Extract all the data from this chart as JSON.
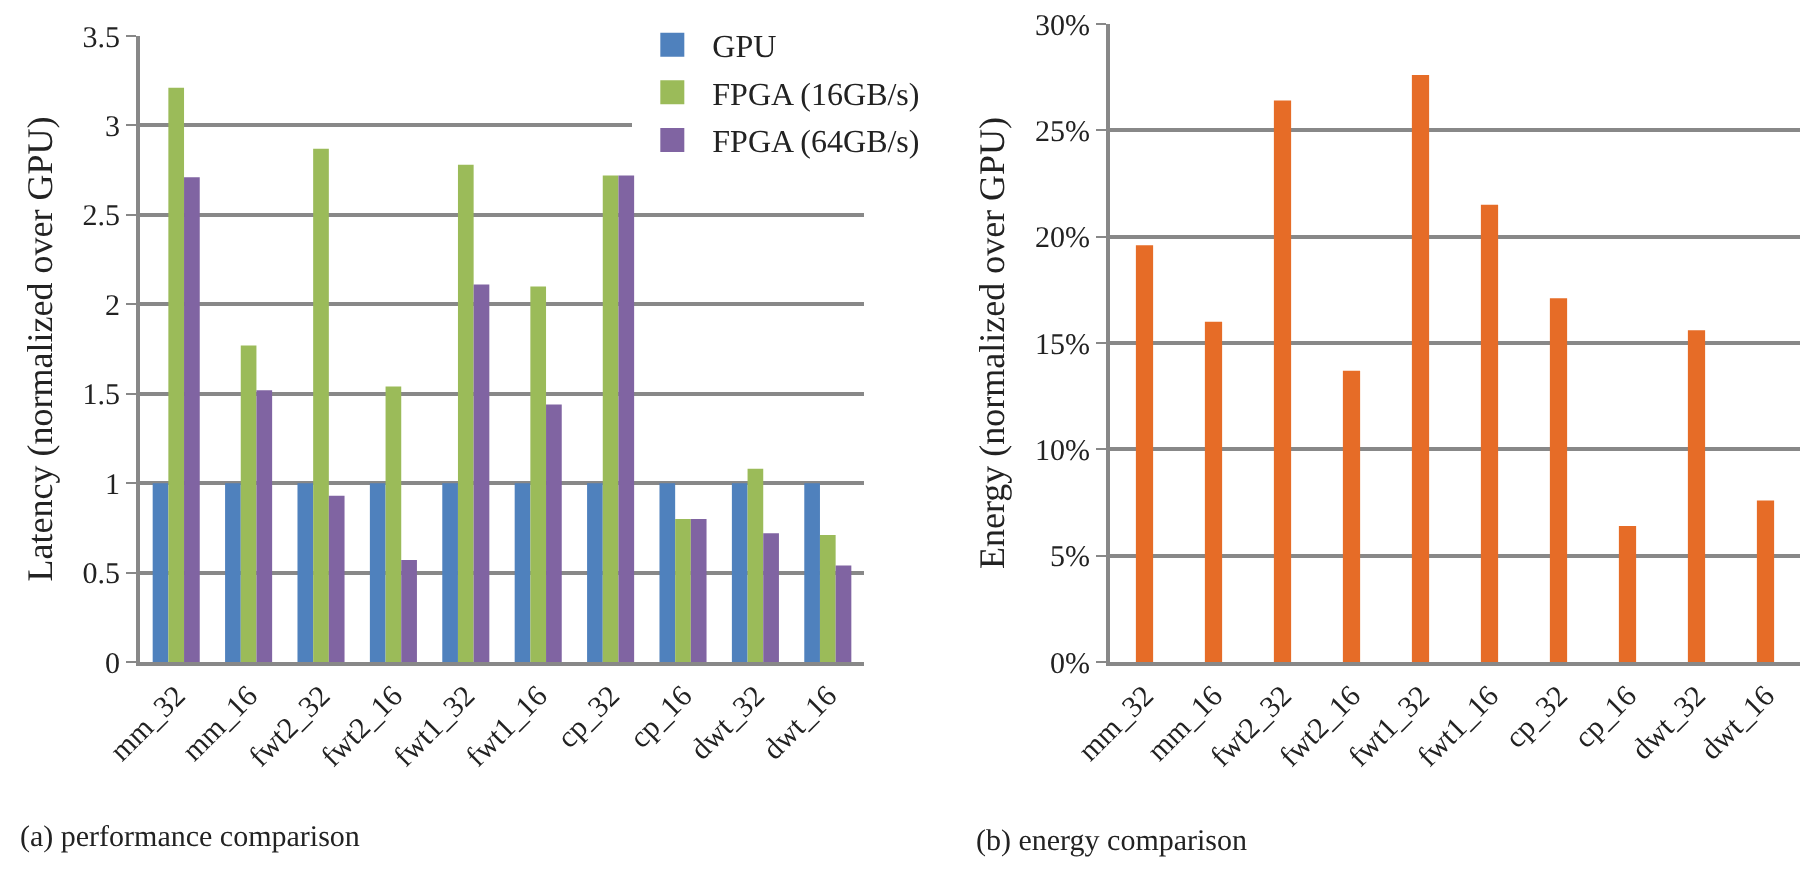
{
  "chart_data": [
    {
      "type": "bar",
      "ylabel": "Latency (normalized over GPU)",
      "categories": [
        "mm_32",
        "mm_16",
        "fwt2_32",
        "fwt2_16",
        "fwt1_32",
        "fwt1_16",
        "cp_32",
        "cp_16",
        "dwt_32",
        "dwt_16"
      ],
      "series": [
        {
          "name": "GPU",
          "color": "#4f81bd",
          "values": [
            1,
            1,
            1,
            1,
            1,
            1,
            1,
            1,
            1,
            1
          ]
        },
        {
          "name": "FPGA (16GB/s)",
          "color": "#9bbb59",
          "values": [
            3.21,
            1.77,
            2.87,
            1.54,
            2.78,
            2.1,
            2.72,
            0.8,
            1.08,
            0.71
          ]
        },
        {
          "name": "FPGA (64GB/s)",
          "color": "#8064a2",
          "values": [
            2.71,
            1.52,
            0.93,
            0.57,
            2.11,
            1.44,
            2.72,
            0.8,
            0.72,
            0.54
          ]
        }
      ],
      "ylim": [
        0,
        3.5
      ],
      "yticks": [
        0,
        0.5,
        1,
        1.5,
        2,
        2.5,
        3,
        3.5
      ],
      "grid": "y",
      "legend": "top right",
      "annotations": [
        "(a) performance comparison"
      ]
    },
    {
      "type": "bar",
      "ylabel": "Energy (normalized over GPU)",
      "categories": [
        "mm_32",
        "mm_16",
        "fwt2_32",
        "fwt2_16",
        "fwt1_32",
        "fwt1_16",
        "cp_32",
        "cp_16",
        "dwt_32",
        "dwt_16"
      ],
      "series": [
        {
          "color": "#e66c27",
          "values": [
            19.6,
            16.0,
            26.4,
            13.7,
            27.6,
            21.5,
            17.1,
            6.4,
            15.6,
            7.6
          ]
        }
      ],
      "ylim": [
        0,
        30
      ],
      "yticks": [
        {
          "value": 0,
          "label": "0%"
        },
        {
          "value": 5,
          "label": "5%"
        },
        {
          "value": 10,
          "label": "10%"
        },
        {
          "value": 15,
          "label": "15%"
        },
        {
          "value": 20,
          "label": "20%"
        },
        {
          "value": 25,
          "label": "25%"
        },
        {
          "value": 30,
          "label": "30%"
        }
      ],
      "grid": "y",
      "annotations": [
        "(b) energy comparison"
      ]
    }
  ]
}
